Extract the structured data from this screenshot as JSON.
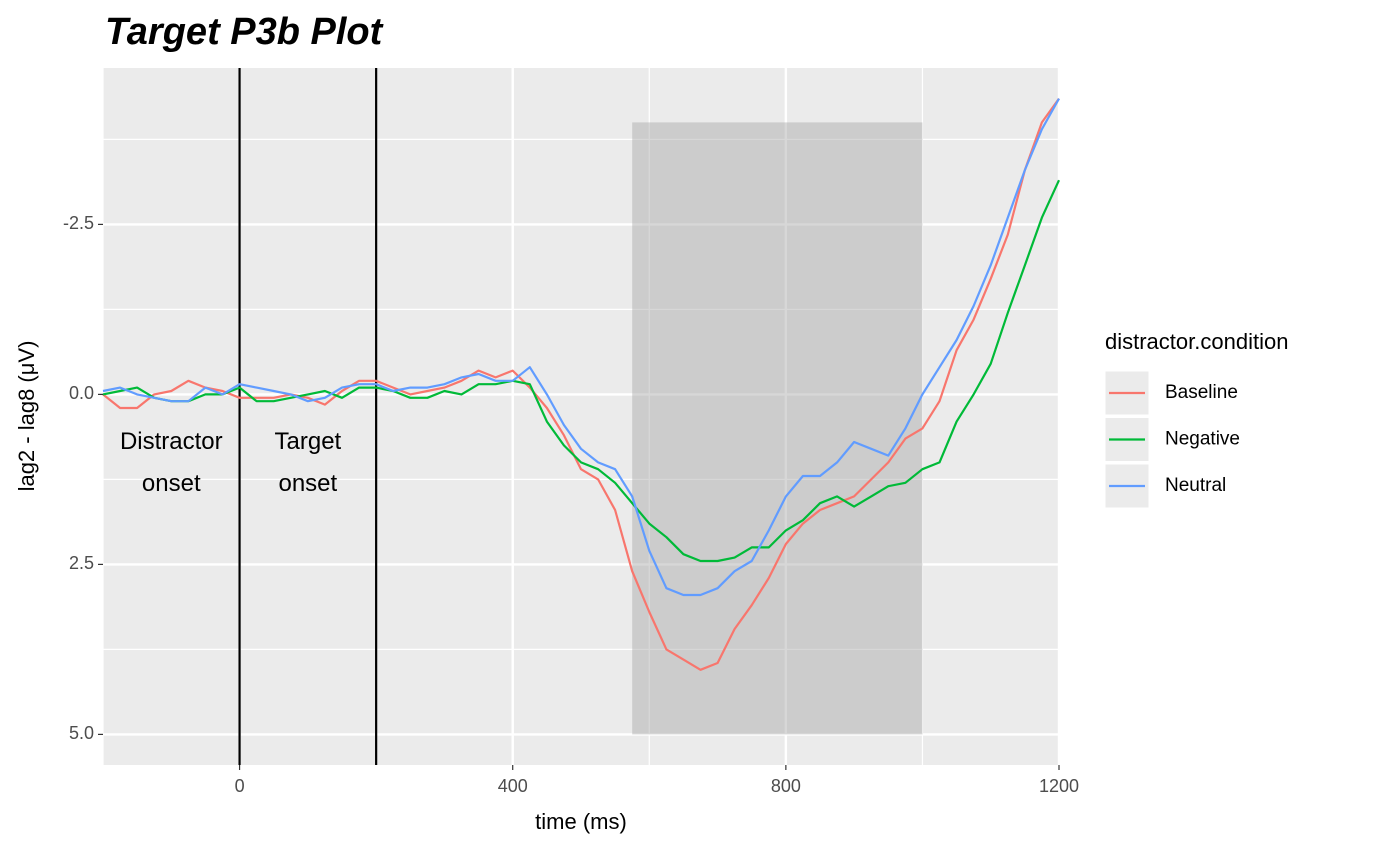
{
  "chart_data": {
    "type": "line",
    "title": "Target P3b Plot",
    "x_label": "time (ms)",
    "y_label": "lag2 - lag8 (μV)",
    "legend_title": "distractor.condition",
    "x": [
      -200,
      -175,
      -150,
      -125,
      -100,
      -75,
      -50,
      -25,
      0,
      25,
      50,
      75,
      100,
      125,
      150,
      175,
      200,
      225,
      250,
      275,
      300,
      325,
      350,
      375,
      400,
      425,
      450,
      475,
      500,
      525,
      550,
      575,
      600,
      625,
      650,
      675,
      700,
      725,
      750,
      775,
      800,
      825,
      850,
      875,
      900,
      925,
      950,
      975,
      1000,
      1025,
      1050,
      1075,
      1100,
      1125,
      1150,
      1175,
      1200
    ],
    "series": [
      {
        "name": "Baseline",
        "color": "#f8766d",
        "values": [
          0.0,
          0.2,
          0.2,
          0.0,
          -0.05,
          -0.2,
          -0.1,
          -0.05,
          0.05,
          0.05,
          0.05,
          0.0,
          0.05,
          0.15,
          -0.05,
          -0.2,
          -0.2,
          -0.1,
          0.0,
          -0.05,
          -0.1,
          -0.2,
          -0.35,
          -0.25,
          -0.35,
          -0.1,
          0.2,
          0.6,
          1.1,
          1.25,
          1.7,
          2.6,
          3.2,
          3.75,
          3.9,
          4.05,
          3.95,
          3.45,
          3.1,
          2.7,
          2.2,
          1.9,
          1.7,
          1.6,
          1.5,
          1.25,
          1.0,
          0.65,
          0.5,
          0.1,
          -0.65,
          -1.1,
          -1.7,
          -2.35,
          -3.3,
          -4.0,
          -4.35
        ]
      },
      {
        "name": "Negative",
        "color": "#00ba38",
        "values": [
          0.0,
          -0.05,
          -0.1,
          0.05,
          0.1,
          0.1,
          0.0,
          0.0,
          -0.1,
          0.1,
          0.1,
          0.05,
          0.0,
          -0.05,
          0.05,
          -0.1,
          -0.1,
          -0.05,
          0.05,
          0.05,
          -0.05,
          0.0,
          -0.15,
          -0.15,
          -0.2,
          -0.15,
          0.4,
          0.75,
          1.0,
          1.1,
          1.3,
          1.6,
          1.9,
          2.1,
          2.35,
          2.45,
          2.45,
          2.4,
          2.25,
          2.25,
          2.0,
          1.85,
          1.6,
          1.5,
          1.65,
          1.5,
          1.35,
          1.3,
          1.1,
          1.0,
          0.4,
          0.0,
          -0.45,
          -1.2,
          -1.9,
          -2.6,
          -3.15
        ]
      },
      {
        "name": "Neutral",
        "color": "#619cff",
        "values": [
          -0.05,
          -0.1,
          0.0,
          0.05,
          0.1,
          0.1,
          -0.1,
          0.0,
          -0.15,
          -0.1,
          -0.05,
          0.0,
          0.1,
          0.05,
          -0.1,
          -0.15,
          -0.15,
          -0.05,
          -0.1,
          -0.1,
          -0.15,
          -0.25,
          -0.3,
          -0.2,
          -0.2,
          -0.4,
          0.0,
          0.45,
          0.8,
          1.0,
          1.1,
          1.5,
          2.3,
          2.85,
          2.95,
          2.95,
          2.85,
          2.6,
          2.45,
          2.0,
          1.5,
          1.2,
          1.2,
          1.0,
          0.7,
          0.8,
          0.9,
          0.5,
          0.0,
          -0.4,
          -0.8,
          -1.3,
          -1.9,
          -2.6,
          -3.3,
          -3.9,
          -4.35
        ]
      }
    ],
    "xlim": [
      -200,
      1200
    ],
    "xticks": [
      0,
      400,
      800,
      1200
    ],
    "xminor": [
      -200,
      200,
      600,
      1000
    ],
    "ylim": [
      5.45,
      -4.8
    ],
    "yticks": [
      -2.5,
      {
        "value": 0,
        "label": "0.0"
      },
      2.5,
      {
        "value": 5,
        "label": "5.0"
      }
    ],
    "yminor": [
      -3.75,
      -1.25,
      1.25,
      3.75
    ],
    "grid": true,
    "shaded_region": {
      "x": [
        575,
        1000
      ],
      "y": [
        -4,
        5
      ]
    },
    "vlines": [
      0,
      200
    ],
    "annotations": [
      {
        "text": "Distractor onset",
        "x": -100
      },
      {
        "text": "Target onset",
        "x": 100
      }
    ]
  }
}
